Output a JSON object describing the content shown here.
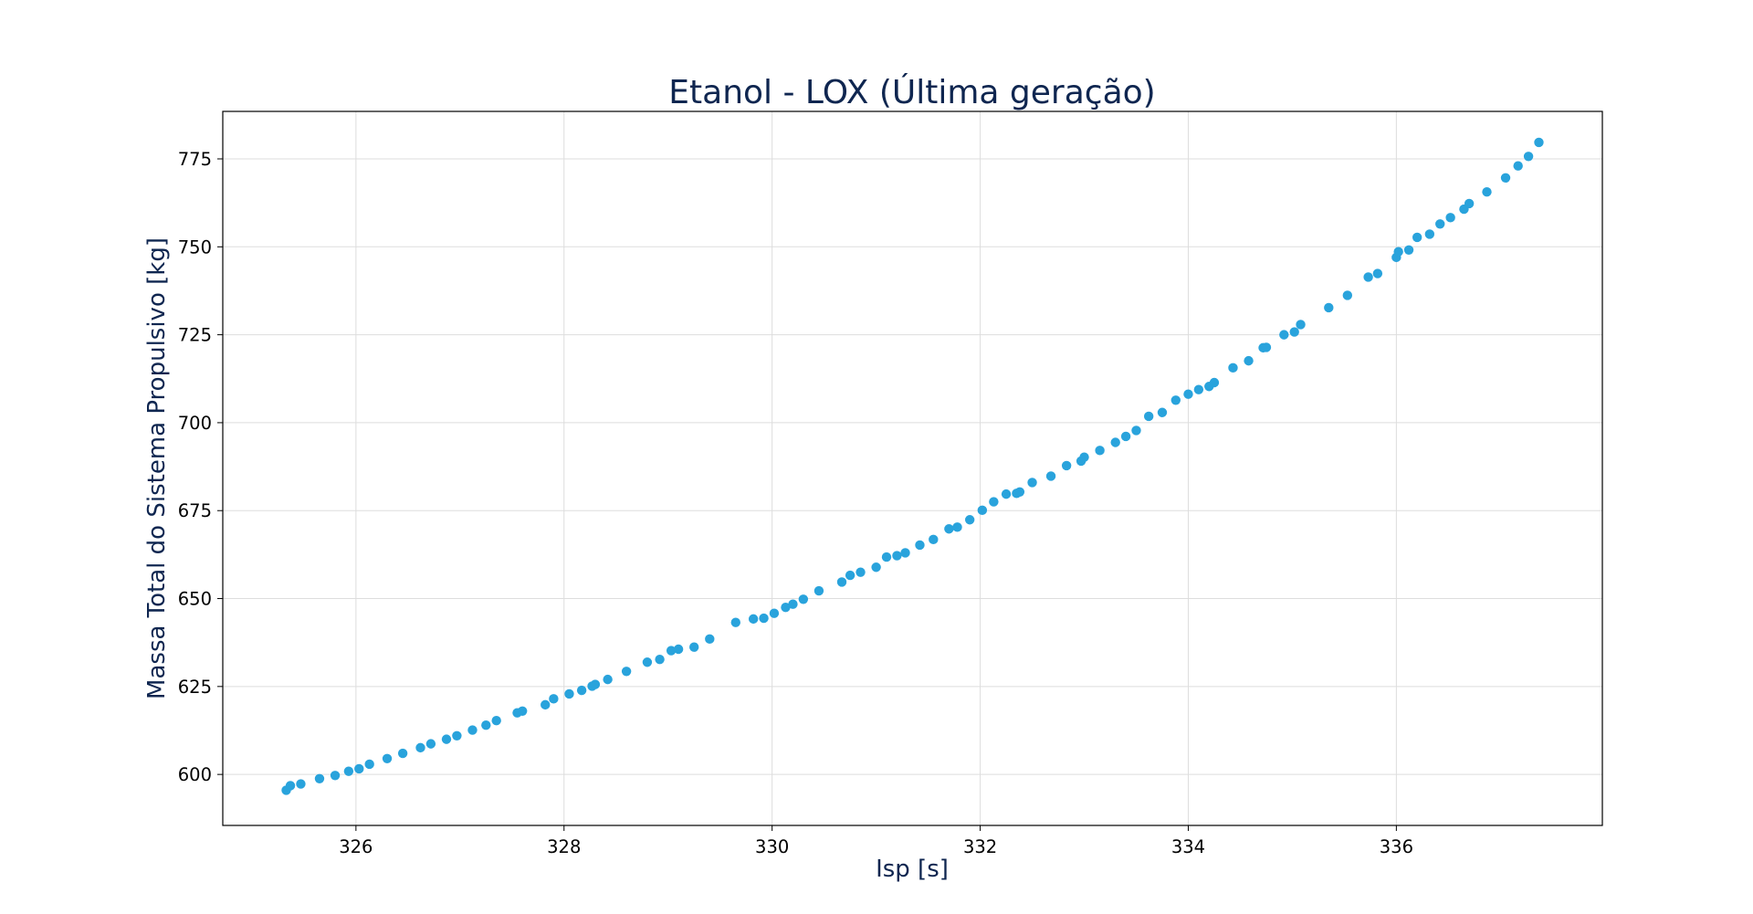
{
  "chart_data": {
    "type": "scatter",
    "title": "Etanol - LOX (Última geração)",
    "xlabel": "Isp [s]",
    "ylabel": "Massa Total do Sistema Propulsivo [kg]",
    "xlim": [
      324.72,
      337.98
    ],
    "ylim": [
      585.5,
      788.5
    ],
    "xticks": [
      326,
      328,
      330,
      332,
      334,
      336
    ],
    "yticks": [
      600,
      625,
      650,
      675,
      700,
      725,
      750,
      775
    ],
    "grid": true,
    "series": [
      {
        "x": [
          325.33,
          325.37,
          325.47,
          325.65,
          325.8,
          325.93,
          326.03,
          326.13,
          326.3,
          326.45,
          326.62,
          326.72,
          326.87,
          326.97,
          327.12,
          327.25,
          327.35,
          327.55,
          327.6,
          327.82,
          327.9,
          328.05,
          328.17,
          328.27,
          328.3,
          328.42,
          328.6,
          328.8,
          328.92,
          329.03,
          329.1,
          329.25,
          329.4,
          329.65,
          329.82,
          329.92,
          330.02,
          330.13,
          330.2,
          330.3,
          330.45,
          330.67,
          330.75,
          330.85,
          331.0,
          331.1,
          331.2,
          331.28,
          331.42,
          331.55,
          331.7,
          331.78,
          331.9,
          332.02,
          332.13,
          332.25,
          332.35,
          332.38,
          332.5,
          332.68,
          332.83,
          332.97,
          333.0,
          333.15,
          333.3,
          333.4,
          333.5,
          333.62,
          333.75,
          333.88,
          334.0,
          334.1,
          334.2,
          334.25,
          334.43,
          334.58,
          334.72,
          334.75,
          334.92,
          335.02,
          335.08,
          335.35,
          335.53,
          335.73,
          335.82,
          336.0,
          336.02,
          336.12,
          336.2,
          336.32,
          336.42,
          336.52,
          336.65,
          336.7,
          336.87,
          337.05,
          337.17,
          337.27,
          337.37
        ],
        "y": [
          595.5,
          596.8,
          597.3,
          598.8,
          599.7,
          600.9,
          601.6,
          602.9,
          604.5,
          606.0,
          607.6,
          608.7,
          610.0,
          611.0,
          612.6,
          614.0,
          615.3,
          617.5,
          618.0,
          619.8,
          621.5,
          622.9,
          623.9,
          625.1,
          625.6,
          627.0,
          629.3,
          631.9,
          632.7,
          635.2,
          635.6,
          636.2,
          638.5,
          643.2,
          644.2,
          644.4,
          645.8,
          647.5,
          648.4,
          649.8,
          652.2,
          654.7,
          656.6,
          657.5,
          658.9,
          661.8,
          662.2,
          663.0,
          665.2,
          666.8,
          669.8,
          670.3,
          672.4,
          675.1,
          677.5,
          679.7,
          679.9,
          680.3,
          683.0,
          684.8,
          687.8,
          689.1,
          690.2,
          692.1,
          694.4,
          696.1,
          697.8,
          701.8,
          702.9,
          706.4,
          708.1,
          709.4,
          710.3,
          711.4,
          715.6,
          717.6,
          721.3,
          721.4,
          725.0,
          725.8,
          727.9,
          732.7,
          736.2,
          741.4,
          742.4,
          747.0,
          748.6,
          749.1,
          752.7,
          753.6,
          756.5,
          758.3,
          760.7,
          762.3,
          765.6,
          769.6,
          773.0,
          775.7,
          779.7
        ]
      }
    ],
    "colors": {
      "points": "#29a3dc",
      "text": "#0f2650",
      "grid": "#dddddd",
      "frame": "#000000"
    }
  }
}
